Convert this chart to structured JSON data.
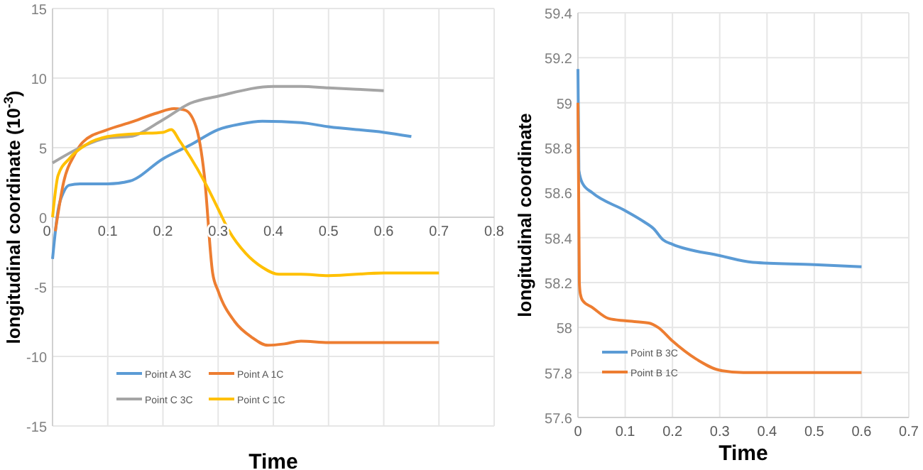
{
  "chart_data": [
    {
      "type": "line",
      "ylabel": "longitudinal coordinate (10$^{-3}$)",
      "xlabel": "Time",
      "xlim": [
        0,
        0.8
      ],
      "xticks": [
        0,
        0.1,
        0.2,
        0.3,
        0.4,
        0.5,
        0.6,
        0.7,
        0.8
      ],
      "ylim": [
        -15,
        15
      ],
      "yticks": [
        -15,
        -10,
        -5,
        0,
        5,
        10,
        15
      ],
      "grid": true,
      "legend": "bottom",
      "marker": "none",
      "line_style": "solid",
      "series": [
        {
          "name": "Point A 3C",
          "color": "#5b9bd5",
          "x": [
            0,
            0.01,
            0.02,
            0.03,
            0.05,
            0.1,
            0.14,
            0.2,
            0.25,
            0.3,
            0.34,
            0.38,
            0.45,
            0.5,
            0.6,
            0.65
          ],
          "values": [
            -3,
            0.5,
            1.8,
            2.3,
            2.4,
            2.4,
            2.6,
            4.2,
            5.2,
            6.3,
            6.7,
            6.9,
            6.8,
            6.5,
            6.1,
            5.8
          ]
        },
        {
          "name": "Point A 1C",
          "color": "#ed7d31",
          "x": [
            0.005,
            0.02,
            0.04,
            0.055,
            0.1,
            0.14,
            0.19,
            0.22,
            0.24,
            0.26,
            0.275,
            0.29,
            0.3,
            0.33,
            0.36,
            0.39,
            0.42,
            0.45,
            0.5,
            0.6,
            0.7
          ],
          "values": [
            -1,
            2.5,
            4.5,
            5.4,
            6.3,
            6.8,
            7.5,
            7.8,
            7.7,
            6.5,
            3,
            -4,
            -5.3,
            -7.5,
            -8.6,
            -9.2,
            -9.1,
            -8.9,
            -9,
            -9,
            -9
          ]
        },
        {
          "name": "Point C 3C",
          "color": "#a5a5a5",
          "x": [
            0,
            0.05,
            0.1,
            0.14,
            0.2,
            0.25,
            0.3,
            0.4,
            0.45,
            0.5,
            0.6
          ],
          "values": [
            3.9,
            5,
            5.7,
            5.8,
            7,
            8.2,
            8.7,
            9.4,
            9.4,
            9.3,
            9.1
          ]
        },
        {
          "name": "Point C 1C",
          "color": "#ffc000",
          "x": [
            0,
            0.01,
            0.03,
            0.06,
            0.1,
            0.15,
            0.2,
            0.215,
            0.23,
            0.25,
            0.28,
            0.3,
            0.32,
            0.35,
            0.38,
            0.41,
            0.45,
            0.5,
            0.6,
            0.7
          ],
          "values": [
            0,
            3,
            4.2,
            5.2,
            5.8,
            6,
            6.1,
            6.3,
            5.5,
            4.3,
            2.2,
            0.6,
            -1,
            -2.6,
            -3.6,
            -4.1,
            -4.1,
            -4.2,
            -4,
            -4
          ]
        }
      ]
    },
    {
      "type": "line",
      "ylabel": "longitudinal coordinate",
      "xlabel": "Time",
      "xlim": [
        0,
        0.7
      ],
      "xticks": [
        0,
        0.1,
        0.2,
        0.3,
        0.4,
        0.5,
        0.6,
        0.7
      ],
      "ylim": [
        57.6,
        59.4
      ],
      "yticks": [
        57.6,
        57.8,
        58,
        58.2,
        58.4,
        58.6,
        58.8,
        59,
        59.2,
        59.4
      ],
      "grid": true,
      "legend": "left",
      "marker": "none",
      "line_style": "solid",
      "series": [
        {
          "name": "Point B 3C",
          "color": "#5b9bd5",
          "x": [
            0,
            0.002,
            0.01,
            0.03,
            0.1,
            0.14,
            0.16,
            0.18,
            0.2,
            0.3,
            0.37,
            0.5,
            0.6
          ],
          "values": [
            59.15,
            58.7,
            58.64,
            58.6,
            58.52,
            58.47,
            58.44,
            58.39,
            58.37,
            58.32,
            58.29,
            58.28,
            58.27
          ]
        },
        {
          "name": "Point B 1C",
          "color": "#ed7d31",
          "x": [
            0,
            0.003,
            0.005,
            0.01,
            0.03,
            0.065,
            0.1,
            0.15,
            0.17,
            0.2,
            0.25,
            0.3,
            0.35,
            0.6
          ],
          "values": [
            59,
            58.2,
            58.15,
            58.12,
            58.09,
            58.04,
            58.03,
            58.02,
            58,
            57.94,
            57.86,
            57.81,
            57.8,
            57.8
          ]
        }
      ]
    }
  ]
}
